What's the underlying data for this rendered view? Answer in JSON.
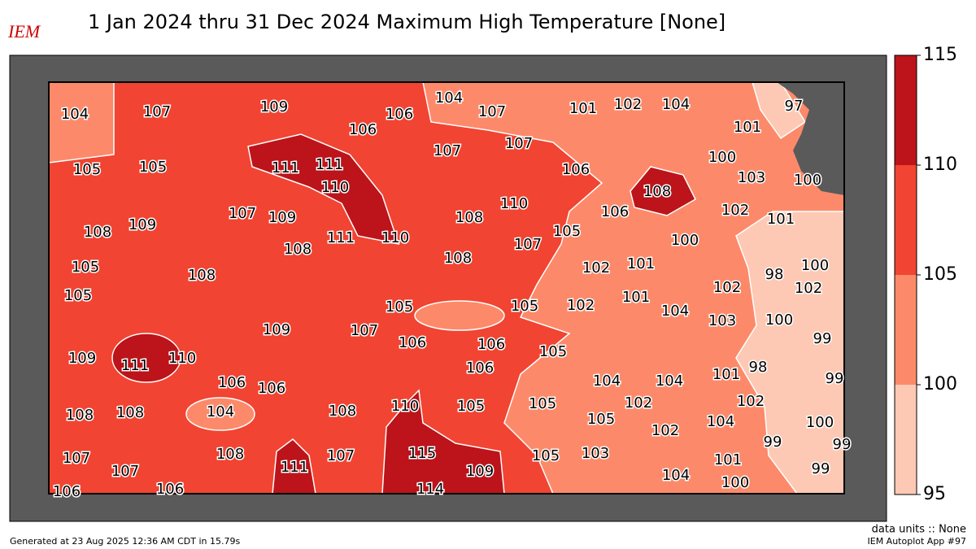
{
  "header": {
    "logo": "IEM",
    "title": "1 Jan 2024 thru 31 Dec 2024 Maximum High Temperature [None]"
  },
  "colorbar": {
    "range": [
      95,
      115
    ],
    "ticks": [
      95,
      100,
      105,
      110,
      115
    ],
    "colors": [
      "#fdc9b4",
      "#fc8a6a",
      "#f14432",
      "#bc141a"
    ]
  },
  "stations": [
    104,
    107,
    109,
    106,
    104,
    107,
    101,
    102,
    104,
    97,
    106,
    101,
    105,
    105,
    111,
    111,
    107,
    107,
    100,
    106,
    103,
    100,
    110,
    108,
    110,
    106,
    102,
    101,
    108,
    109,
    107,
    109,
    108,
    111,
    110,
    105,
    100,
    108,
    108,
    107,
    102,
    101,
    100,
    98,
    105,
    108,
    102,
    102,
    105,
    105,
    105,
    102,
    101,
    104,
    103,
    100,
    109,
    107,
    99,
    106,
    106,
    105,
    109,
    111,
    110,
    106,
    101,
    98,
    99,
    106,
    106,
    104,
    104,
    110,
    105,
    105,
    102,
    102,
    108,
    108,
    104,
    108,
    105,
    104,
    100,
    102,
    99,
    99,
    115,
    107,
    108,
    111,
    107,
    109,
    105,
    103,
    101,
    99,
    107,
    104,
    100,
    114,
    106,
    106
  ],
  "footer": {
    "units": "data units :: None",
    "app": "IEM Autoplot App #97",
    "generated": "Generated at 23 Aug 2025 12:36 AM CDT in 15.79s"
  }
}
